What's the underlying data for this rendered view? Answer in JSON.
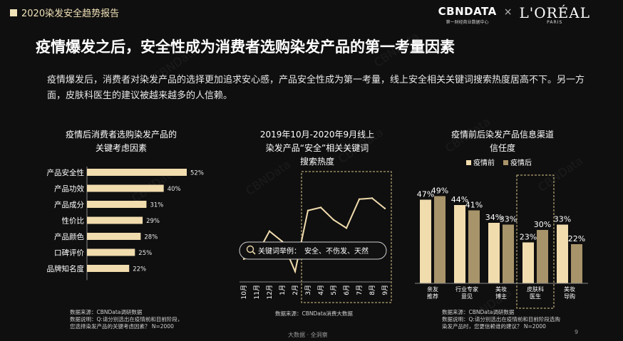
{
  "header": {
    "report_tag": "2020染发安全趋势报告",
    "logo_cbn": "CBNDATA",
    "logo_cbn_sub": "第一财经商业数据中心",
    "logo_x": "×",
    "logo_loreal": "L'ORÉAL",
    "logo_loreal_sub": "PARIS"
  },
  "headline": "疫情爆发之后，安全性成为消费者选购染发产品的第一考量因素",
  "intro": "疫情爆发后，消费者对染发产品的选择更加追求安心感，产品安全性成为第一考量，线上安全相关关键词搜索热度居高不下。另一方面，皮肤科医生的建议被越来越多的人信赖。",
  "watermark": "CBNData",
  "chart_data": [
    {
      "type": "bar",
      "orientation": "horizontal",
      "title_lines": [
        "疫情后消费者选购染发产品的",
        "关键考虑因素"
      ],
      "categories": [
        "产品安全性",
        "产品功效",
        "产品成分",
        "性价比",
        "产品颜色",
        "口碑评价",
        "品牌知名度"
      ],
      "values": [
        52,
        40,
        31,
        29,
        28,
        25,
        22
      ],
      "value_labels": [
        "52%",
        "40%",
        "31%",
        "29%",
        "28%",
        "25%",
        "22%"
      ],
      "xlim": [
        0,
        52
      ],
      "bar_color": "#f1dcae",
      "footnote": [
        "数据来源：CBNData调研数据",
        "数据说明：Q:请分别选出在疫情前和目前阶段，",
        "您选择染发产品的关键考虑因素？ N=2000"
      ]
    },
    {
      "type": "line",
      "title_lines": [
        "2019年10月-2020年9月线上",
        "染发产品“安全”相关关键词",
        "搜索热度"
      ],
      "categories": [
        "10月",
        "11月",
        "12月",
        "1月",
        "2月",
        "3月",
        "4月",
        "5月",
        "6月",
        "7月",
        "8月",
        "9月"
      ],
      "values": [
        18,
        22,
        45,
        35,
        6,
        65,
        68,
        56,
        48,
        76,
        77,
        67
      ],
      "ylim": [
        0,
        100
      ],
      "line_color": "#f1dcae",
      "highlight_range": [
        "3月",
        "9月"
      ],
      "annotation": {
        "label": "关键词举例：",
        "text": "安全、不伤发、天然"
      },
      "footnote": [
        "数据来源：CBNData消费大数据"
      ]
    },
    {
      "type": "bar",
      "title_lines": [
        "疫情前后染发产品信息渠道",
        "信任度"
      ],
      "categories": [
        [
          "亲友",
          "推荐"
        ],
        [
          "行业专家",
          "意见"
        ],
        [
          "美妆",
          "博主"
        ],
        [
          "皮肤科",
          "医生"
        ],
        [
          "美妆",
          "导购"
        ]
      ],
      "series": [
        {
          "name": "疫情前",
          "values": [
            47,
            44,
            34,
            23,
            33
          ],
          "labels": [
            "47%",
            "44%",
            "34%",
            "23%",
            "33%"
          ],
          "color": "#f1dcae"
        },
        {
          "name": "疫情后",
          "values": [
            49,
            41,
            33,
            30,
            22
          ],
          "labels": [
            "49%",
            "41%",
            "33%",
            "30%",
            "22%"
          ],
          "color": "#a8946a"
        }
      ],
      "ylim": [
        0,
        50
      ],
      "highlight_category": "皮肤科医生",
      "legend_position": "top",
      "footnote": [
        "数据来源：CBNData调研数据",
        "数据说明：Q:请分别选出在疫情前和目前阶段选购",
        "染发产品时，您更信赖谁的建议？ N=2000"
      ]
    }
  ],
  "footer": {
    "bottom_text": "大数据 · 全洞察",
    "page_number": "9"
  }
}
